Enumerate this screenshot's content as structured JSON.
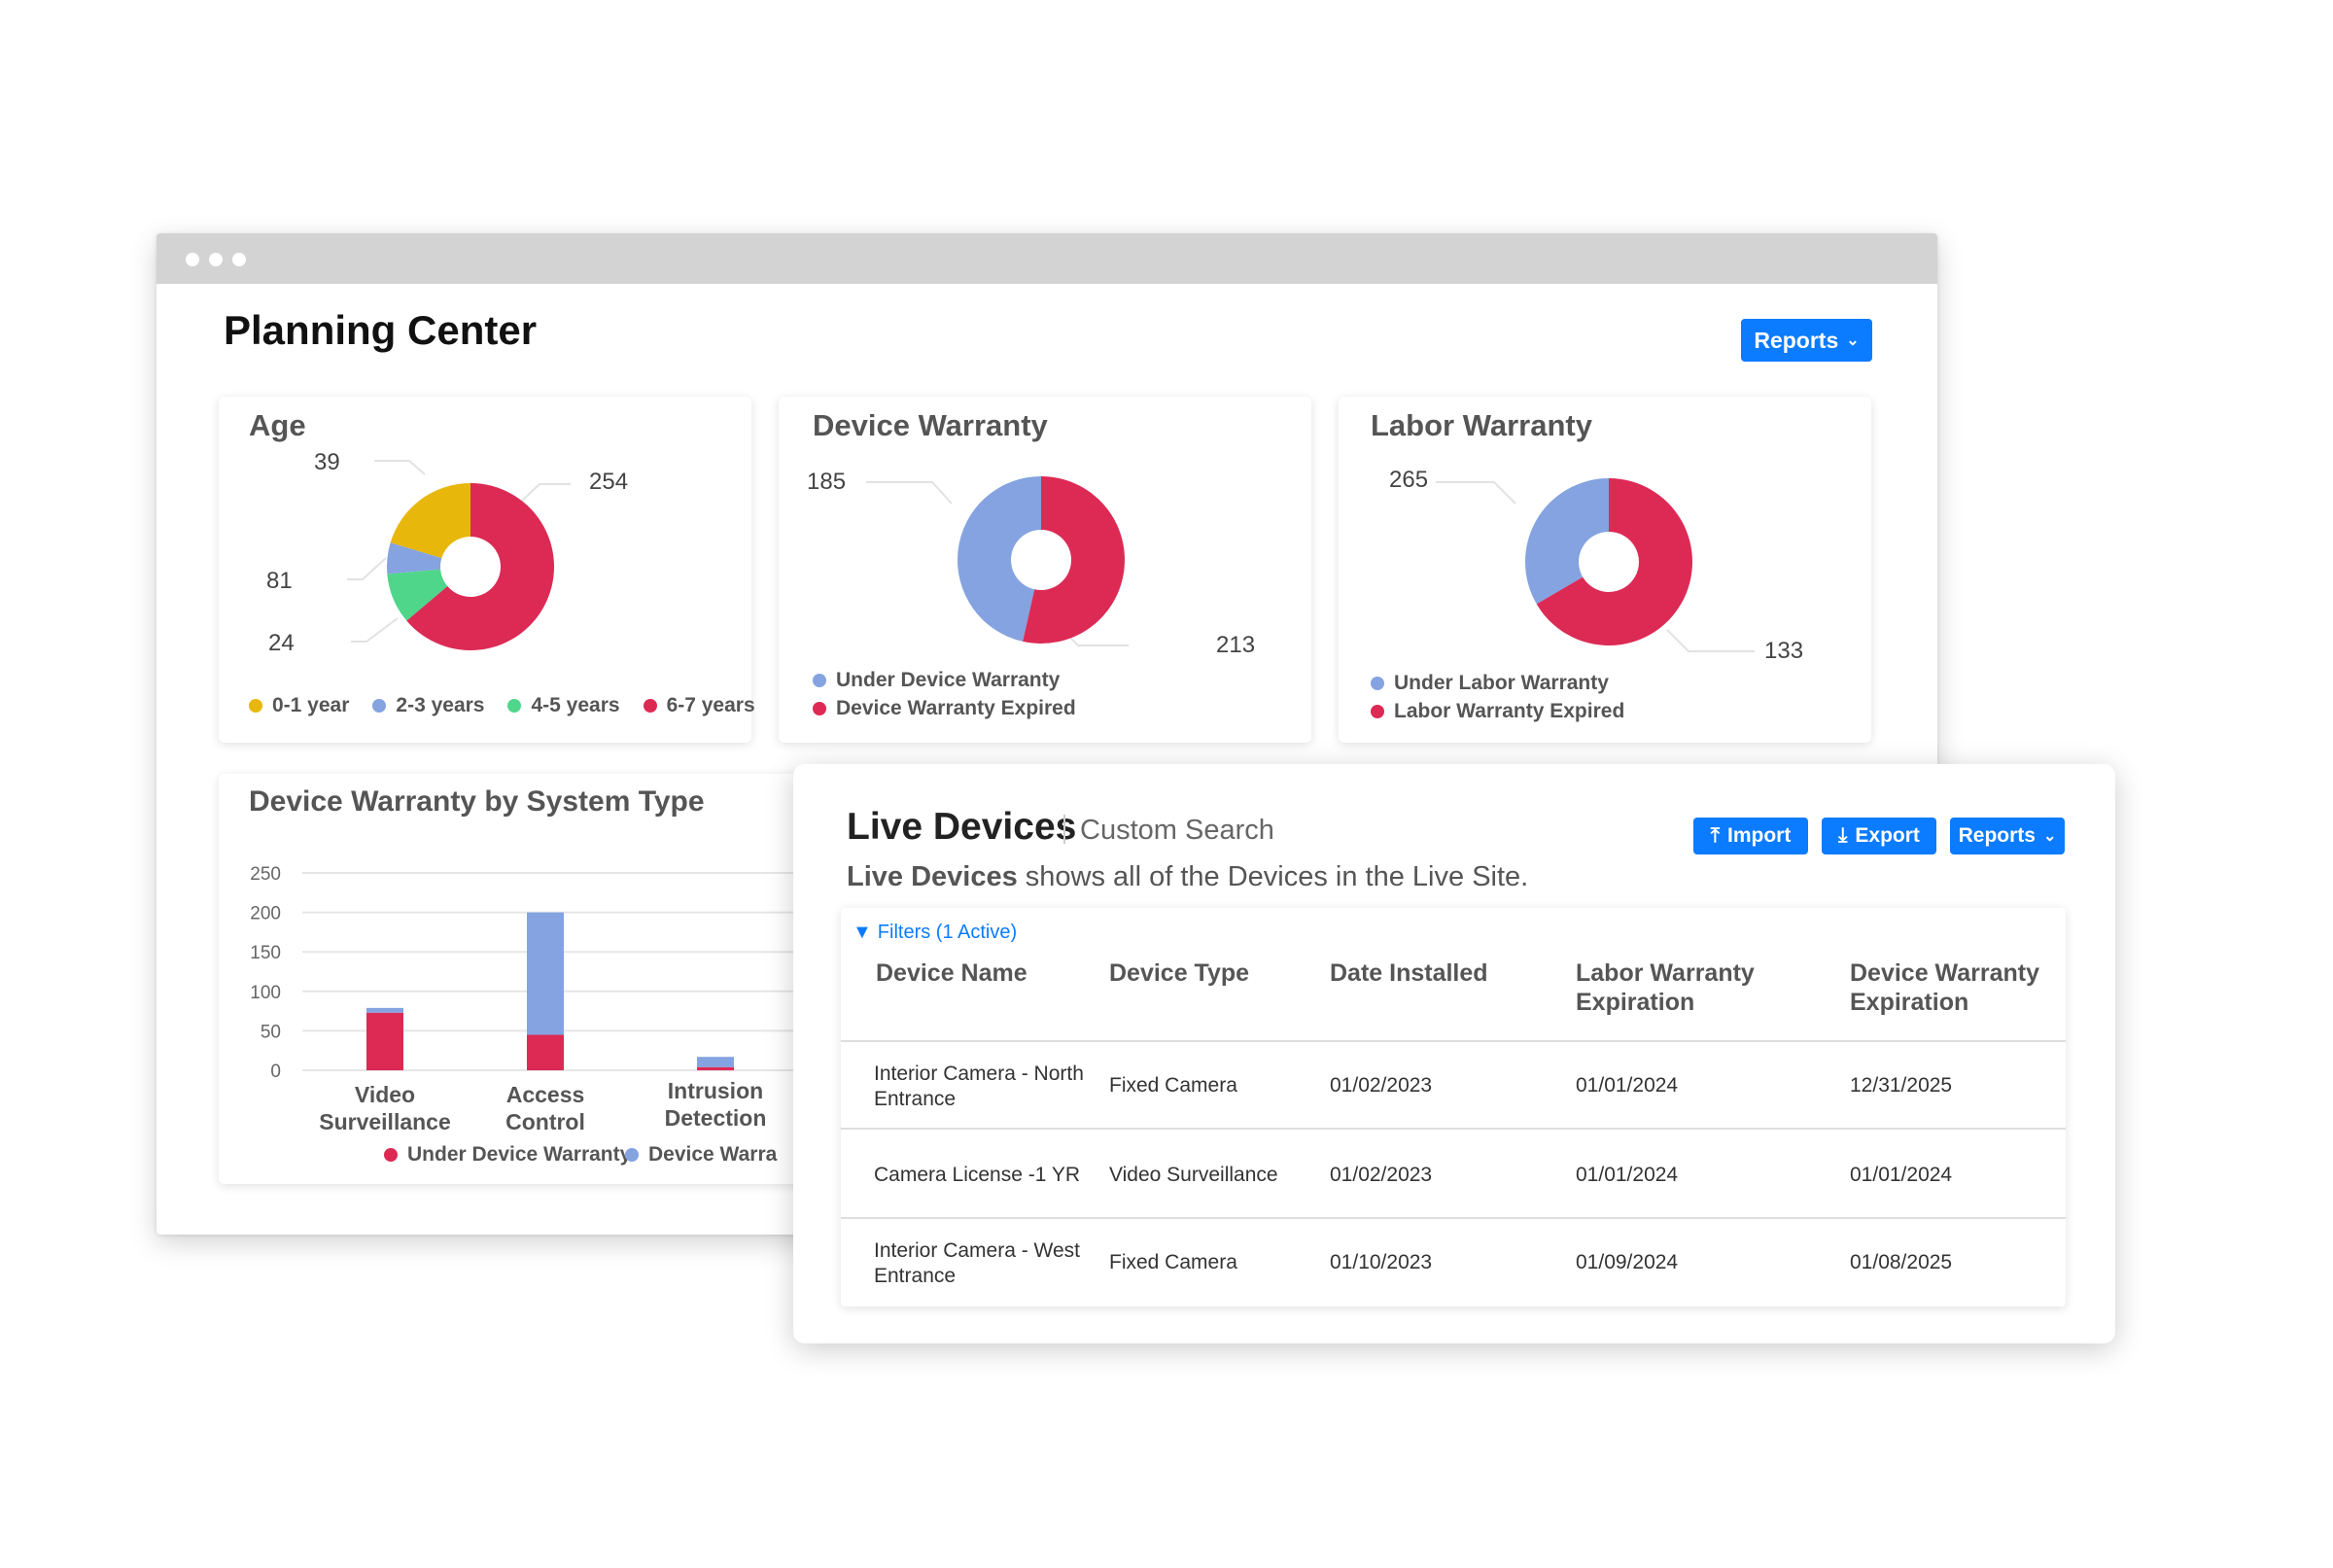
{
  "window": {
    "title": "Planning Center",
    "reports_label": "Reports"
  },
  "colors": {
    "accent": "#0b7bff",
    "red": "#dc2a55",
    "blue": "#84a3e0",
    "yellow": "#e8b70c",
    "green": "#4fd68a"
  },
  "age": {
    "title": "Age",
    "values": [
      81,
      24,
      39,
      254
    ],
    "labels": {
      "a": "254",
      "b": "39",
      "c": "81",
      "d": "24"
    },
    "legend": [
      "0-1 year",
      "2-3 years",
      "4-5 years",
      "6-7 years"
    ]
  },
  "device_warranty": {
    "title": "Device Warranty",
    "values": [
      185,
      213
    ],
    "labels": {
      "a": "185",
      "b": "213"
    },
    "legend": [
      "Under Device Warranty",
      "Device Warranty Expired"
    ]
  },
  "labor_warranty": {
    "title": "Labor Warranty",
    "values": [
      133,
      265
    ],
    "labels": {
      "a": "265",
      "b": "133"
    },
    "legend": [
      "Under Labor Warranty",
      "Labor Warranty Expired"
    ]
  },
  "chart_data": {
    "type": "bar",
    "title": "Device Warranty by System Type",
    "categories": [
      "Video Surveillance",
      "Access Control",
      "Intrusion Detection"
    ],
    "category_lines": [
      [
        "Video",
        "Surveillance"
      ],
      [
        "Access",
        "Control"
      ],
      [
        "Intrusion",
        "Detection"
      ]
    ],
    "series": [
      {
        "name": "Under Device Warranty",
        "values": [
          73,
          45,
          4
        ]
      },
      {
        "name": "Device Warranty",
        "values": [
          6,
          155,
          13
        ]
      }
    ],
    "stacked": true,
    "ylim": [
      0,
      250
    ],
    "yticks": [
      "250",
      "200",
      "150",
      "100",
      "50",
      "0"
    ],
    "legend": [
      "Under Device Warranty",
      "Device Warra"
    ]
  },
  "live_devices": {
    "title": "Live Devices",
    "subtitle": "Custom Search",
    "description_bold": "Live Devices",
    "description_rest": " shows all of the Devices in the Live Site.",
    "buttons": {
      "import": "Import",
      "export": "Export",
      "reports": "Reports"
    },
    "filters_label": "Filters (1 Active)",
    "columns": [
      "Device Name",
      "Device Type",
      "Date Installed",
      "Labor Warranty Expiration",
      "Device Warranty Expiration"
    ],
    "rows": [
      [
        "Interior Camera - North Entrance",
        "Fixed Camera",
        "01/02/2023",
        "01/01/2024",
        "12/31/2025"
      ],
      [
        "Camera License -1 YR",
        "Video Surveillance",
        "01/02/2023",
        "01/01/2024",
        "01/01/2024"
      ],
      [
        "Interior Camera - West Entrance",
        "Fixed Camera",
        "01/10/2023",
        "01/09/2024",
        "01/08/2025"
      ]
    ]
  }
}
